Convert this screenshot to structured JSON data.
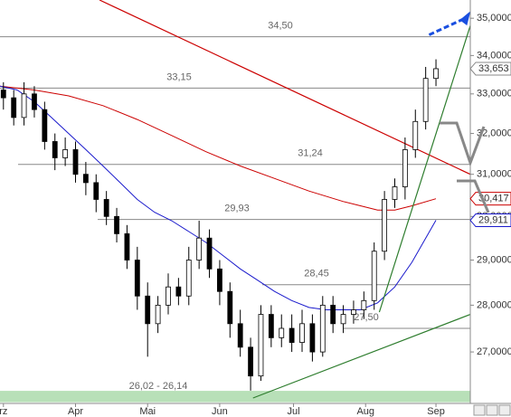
{
  "chart_data": {
    "type": "candlestick",
    "log_scale": true,
    "ylim": [
      26.05,
      35.5
    ],
    "yticks": [
      {
        "value": 27,
        "label": "27,0000"
      },
      {
        "value": 28,
        "label": "28,0000"
      },
      {
        "value": 29,
        "label": "29,0000"
      },
      {
        "value": 30,
        "label": "30,0000"
      },
      {
        "value": 31,
        "label": "31,0000"
      },
      {
        "value": 32,
        "label": "32,0000"
      },
      {
        "value": 33,
        "label": "33,0000"
      },
      {
        "value": 34,
        "label": "34,0000"
      },
      {
        "value": 35,
        "label": "35,0000"
      }
    ],
    "xlim": [
      0,
      137
    ],
    "xticks": [
      {
        "value": 1,
        "label": "rz"
      },
      {
        "value": 22,
        "label": "Apr"
      },
      {
        "value": 43,
        "label": "Mai"
      },
      {
        "value": 64,
        "label": "Jun"
      },
      {
        "value": 85.5,
        "label": "Jul"
      },
      {
        "value": 106.5,
        "label": "Aug"
      },
      {
        "value": 127,
        "label": "Sep"
      }
    ],
    "x": [
      1,
      4,
      7,
      10,
      13,
      16,
      19,
      22,
      25,
      28,
      31,
      34,
      37,
      40,
      43,
      46,
      49,
      52,
      55,
      58,
      61,
      64,
      67,
      70,
      73,
      76,
      79,
      82,
      85,
      88,
      91,
      94,
      97,
      100,
      103,
      106,
      109,
      112,
      115,
      118,
      121,
      124,
      127
    ],
    "open": [
      33.1,
      32.9,
      32.4,
      33.0,
      32.6,
      31.8,
      31.4,
      31.6,
      31.0,
      30.8,
      30.4,
      30.0,
      29.6,
      29.0,
      28.2,
      27.6,
      28.0,
      28.4,
      28.2,
      29.0,
      29.5,
      28.8,
      28.3,
      27.6,
      27.1,
      26.5,
      27.8,
      27.3,
      27.5,
      27.2,
      27.6,
      27.0,
      28.0,
      27.6,
      27.8,
      27.9,
      28.1,
      29.2,
      30.4,
      30.7,
      31.6,
      32.3,
      33.4
    ],
    "high": [
      33.3,
      33.1,
      33.3,
      33.2,
      32.8,
      32.0,
      31.9,
      31.8,
      31.3,
      31.0,
      30.6,
      30.2,
      29.8,
      29.3,
      28.5,
      28.2,
      28.7,
      28.6,
      29.3,
      29.9,
      29.7,
      29.0,
      28.5,
      27.9,
      27.3,
      28.0,
      28.0,
      27.8,
      27.8,
      27.9,
      27.8,
      28.2,
      28.2,
      28.0,
      28.1,
      28.3,
      29.4,
      30.6,
      30.9,
      31.9,
      32.6,
      33.7,
      33.9
    ],
    "low": [
      32.6,
      32.2,
      32.2,
      32.4,
      31.6,
      31.1,
      31.2,
      30.8,
      30.5,
      30.1,
      29.8,
      29.4,
      28.8,
      27.9,
      26.9,
      27.4,
      27.8,
      28.0,
      28.0,
      28.8,
      28.6,
      28.0,
      27.3,
      26.9,
      26.2,
      26.4,
      27.1,
      27.1,
      27.0,
      27.0,
      26.8,
      26.9,
      27.4,
      27.4,
      27.6,
      27.7,
      27.9,
      29.0,
      30.2,
      30.4,
      31.4,
      32.1,
      33.2
    ],
    "close": [
      32.9,
      32.4,
      33.0,
      32.6,
      31.8,
      31.4,
      31.6,
      31.0,
      30.8,
      30.4,
      30.0,
      29.6,
      29.0,
      28.2,
      27.6,
      28.0,
      28.4,
      28.2,
      29.0,
      29.5,
      28.8,
      28.3,
      27.6,
      27.1,
      26.5,
      27.8,
      27.3,
      27.5,
      27.2,
      27.6,
      27.0,
      28.0,
      27.6,
      27.8,
      27.9,
      28.1,
      29.2,
      30.4,
      30.7,
      31.6,
      32.3,
      33.4,
      33.653
    ],
    "last_label": "33,653",
    "up_color": "#ffffff",
    "down_color": "#000000",
    "lines": [
      {
        "color": "#cc0000",
        "x": [
          0,
          10,
          20,
          30,
          40,
          50,
          60,
          70,
          80,
          90,
          100,
          105,
          110,
          115,
          120,
          127
        ],
        "values": [
          33.2,
          33.1,
          32.95,
          32.7,
          32.35,
          31.95,
          31.55,
          31.2,
          30.9,
          30.6,
          30.35,
          30.25,
          30.15,
          30.15,
          30.25,
          30.417
        ],
        "last_label": "30,417"
      },
      {
        "color": "#1a1acc",
        "x": [
          0,
          5,
          10,
          15,
          20,
          25,
          30,
          35,
          40,
          45,
          50,
          55,
          60,
          65,
          70,
          75,
          80,
          85,
          90,
          95,
          100,
          105,
          110,
          115,
          120,
          127
        ],
        "values": [
          33.2,
          33.1,
          32.8,
          32.4,
          32.0,
          31.6,
          31.2,
          30.8,
          30.4,
          30.1,
          29.9,
          29.65,
          29.4,
          29.1,
          28.8,
          28.55,
          28.3,
          28.1,
          27.95,
          27.9,
          27.9,
          27.9,
          28.05,
          28.4,
          28.95,
          29.911
        ],
        "last_label": "29,911"
      }
    ],
    "levels": [
      {
        "value": 34.5,
        "label": "34,50"
      },
      {
        "value": 33.15,
        "label": "33,15"
      },
      {
        "value": 31.24,
        "label": "31,24"
      },
      {
        "value": 29.93,
        "label": "29,93"
      },
      {
        "value": 28.45,
        "label": "28,45"
      },
      {
        "value": 27.5,
        "label": "27,50"
      }
    ],
    "support_zone": {
      "values": [
        26.02,
        26.14
      ],
      "label": "26,02 - 26,14",
      "color": "#b8e0b8"
    },
    "trendlines": [
      {
        "x": [
          29,
          137
        ],
        "values": [
          35.5,
          31.0
        ],
        "color": "#cc0000",
        "dashed": false
      },
      {
        "x": [
          73.7,
          137
        ],
        "values": [
          26.05,
          27.8
        ],
        "color": "#2e7d2e",
        "dashed": false
      },
      {
        "x": [
          110.5,
          137
        ],
        "values": [
          27.85,
          34.8
        ],
        "color": "#2e7d2e",
        "dashed": false
      },
      {
        "x": [
          125,
          135.5
        ],
        "values": [
          34.55,
          35.0
        ],
        "color": "#1a4fe0",
        "dashed": true
      }
    ]
  }
}
